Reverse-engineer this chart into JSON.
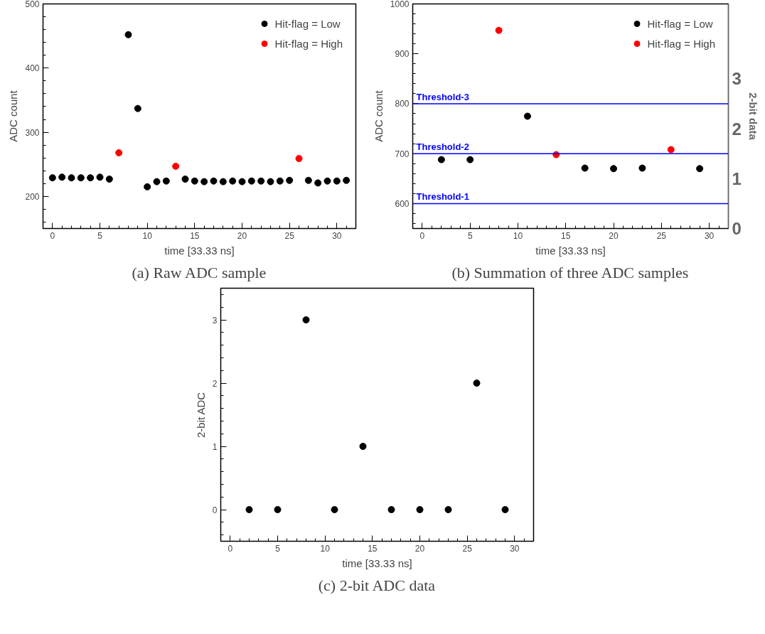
{
  "chart_data": [
    {
      "type": "scatter",
      "title": "(a) Raw ADC sample",
      "xlabel": "time [33.33 ns]",
      "ylabel": "ADC count",
      "xlim": [
        -1,
        32
      ],
      "ylim": [
        150,
        500
      ],
      "xticks": [
        0,
        5,
        10,
        15,
        20,
        25,
        30
      ],
      "yticks": [
        200,
        300,
        400,
        500
      ],
      "grid": false,
      "legend": "top right",
      "marker": "circle",
      "series": [
        {
          "name": "Hit-flag = Low",
          "color": "#000000",
          "x": [
            0,
            1,
            2,
            3,
            4,
            5,
            6,
            8,
            9,
            10,
            11,
            12,
            14,
            15,
            16,
            17,
            18,
            19,
            20,
            21,
            22,
            23,
            24,
            25,
            27,
            28,
            29,
            30,
            31
          ],
          "values": [
            229,
            230,
            229,
            229,
            229,
            230,
            227,
            452,
            337,
            215,
            223,
            224,
            227,
            224,
            223,
            224,
            223,
            224,
            223,
            224,
            224,
            223,
            224,
            225,
            225,
            221,
            224,
            224,
            225
          ]
        },
        {
          "name": "Hit-flag = High",
          "color": "#ff0000",
          "x": [
            7,
            13,
            26
          ],
          "values": [
            268,
            247,
            259
          ]
        }
      ]
    },
    {
      "type": "scatter",
      "title": "(b) Summation of three ADC samples",
      "xlabel": "time [33.33 ns]",
      "ylabel": "ADC count",
      "y2label": "2-bit data",
      "xlim": [
        -1,
        32
      ],
      "ylim": [
        550,
        1000
      ],
      "xticks": [
        0,
        5,
        10,
        15,
        20,
        25,
        30
      ],
      "yticks": [
        600,
        700,
        800,
        900,
        1000
      ],
      "y2lim": [
        0,
        4.5
      ],
      "y2ticks": [
        0,
        1,
        2,
        3
      ],
      "grid": false,
      "legend": "top right",
      "marker": "circle",
      "series": [
        {
          "name": "Hit-flag = Low",
          "color": "#000000",
          "x": [
            2,
            5,
            11,
            17,
            20,
            23,
            29
          ],
          "values": [
            688,
            688,
            775,
            671,
            670,
            671,
            670
          ]
        },
        {
          "name": "Hit-flag = High",
          "color": "#ff0000",
          "x": [
            8,
            14,
            26
          ],
          "values": [
            947,
            698,
            708
          ]
        }
      ],
      "ref_lines": [
        {
          "axis": "y",
          "value": 600,
          "label": "Threshold-1",
          "color": "#0000ff"
        },
        {
          "axis": "y",
          "value": 700,
          "label": "Threshold-2",
          "color": "#0000ff"
        },
        {
          "axis": "y",
          "value": 800,
          "label": "Threshold-3",
          "color": "#0000ff"
        }
      ]
    },
    {
      "type": "scatter",
      "title": "(c) 2-bit ADC data",
      "xlabel": "time [33.33 ns]",
      "ylabel": "2-bit ADC",
      "xlim": [
        -1,
        32
      ],
      "ylim": [
        -0.5,
        3.5
      ],
      "xticks": [
        0,
        5,
        10,
        15,
        20,
        25,
        30
      ],
      "yticks": [
        0,
        1,
        2,
        3
      ],
      "grid": false,
      "marker": "circle",
      "series": [
        {
          "color": "#000000",
          "x": [
            2,
            5,
            8,
            11,
            14,
            17,
            20,
            23,
            26,
            29
          ],
          "values": [
            0,
            0,
            3,
            0,
            1,
            0,
            0,
            0,
            2,
            0
          ]
        }
      ]
    }
  ]
}
